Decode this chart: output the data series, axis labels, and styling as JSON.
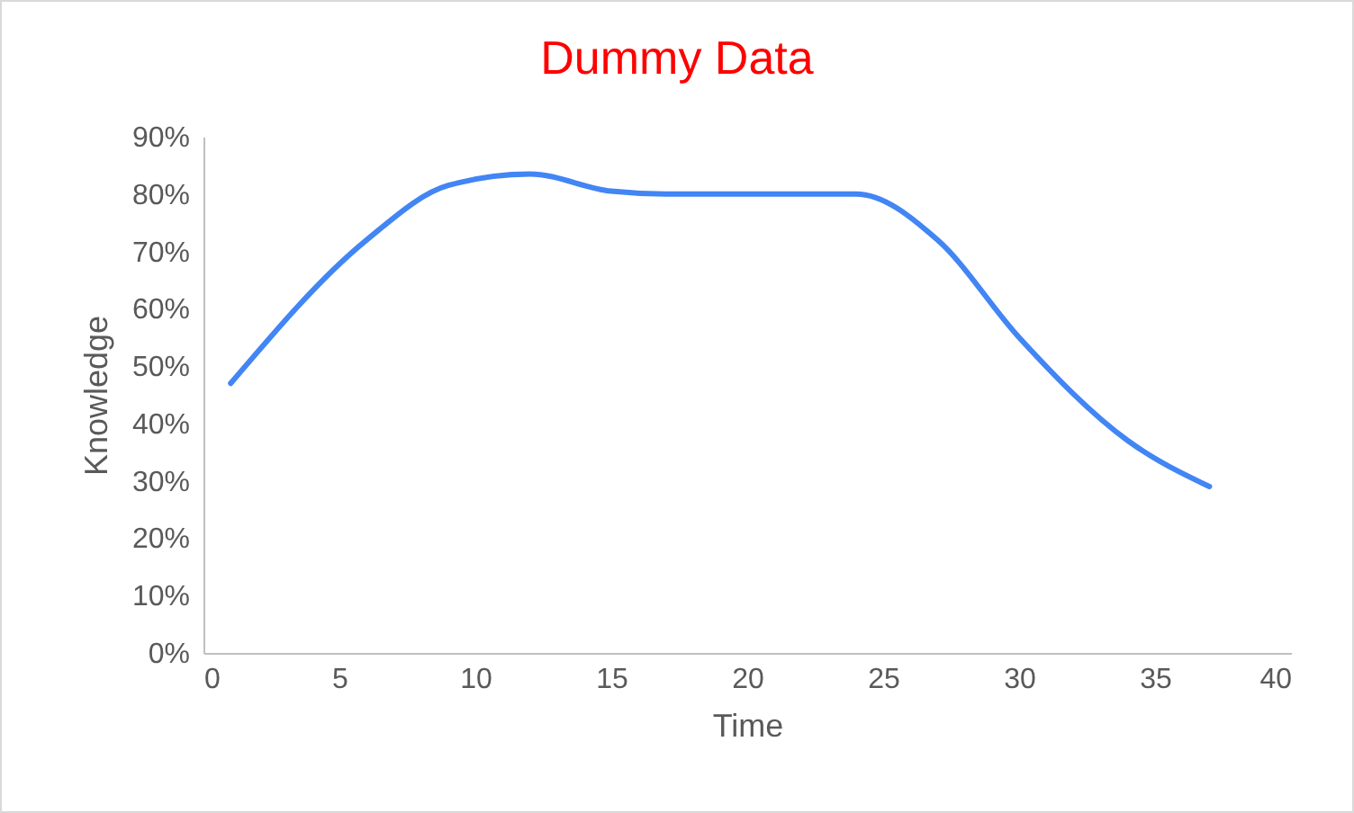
{
  "chart_data": {
    "type": "line",
    "title": "Dummy Data",
    "xlabel": "Time",
    "ylabel": "Knowledge",
    "x": [
      1,
      6,
      9,
      12,
      15,
      17,
      24,
      27,
      30,
      34,
      37
    ],
    "series": [
      {
        "color": "#4285f4",
        "values": [
          47,
          72,
          81.5,
          83.5,
          80.5,
          80,
          80,
          72,
          55,
          37,
          29
        ]
      }
    ],
    "xlim": [
      0,
      40
    ],
    "xticks": [
      0,
      5,
      10,
      15,
      20,
      25,
      30,
      35,
      40
    ],
    "ylim": [
      0,
      90
    ],
    "yticks": [
      {
        "value": 0,
        "label": "0%"
      },
      {
        "value": 10,
        "label": "10%"
      },
      {
        "value": 20,
        "label": "20%"
      },
      {
        "value": 30,
        "label": "30%"
      },
      {
        "value": 40,
        "label": "40%"
      },
      {
        "value": 50,
        "label": "50%"
      },
      {
        "value": 60,
        "label": "60%"
      },
      {
        "value": 70,
        "label": "70%"
      },
      {
        "value": 80,
        "label": "80%"
      },
      {
        "value": 90,
        "label": "90%"
      }
    ],
    "grid": false,
    "marker": "none",
    "line_style": "solid"
  }
}
